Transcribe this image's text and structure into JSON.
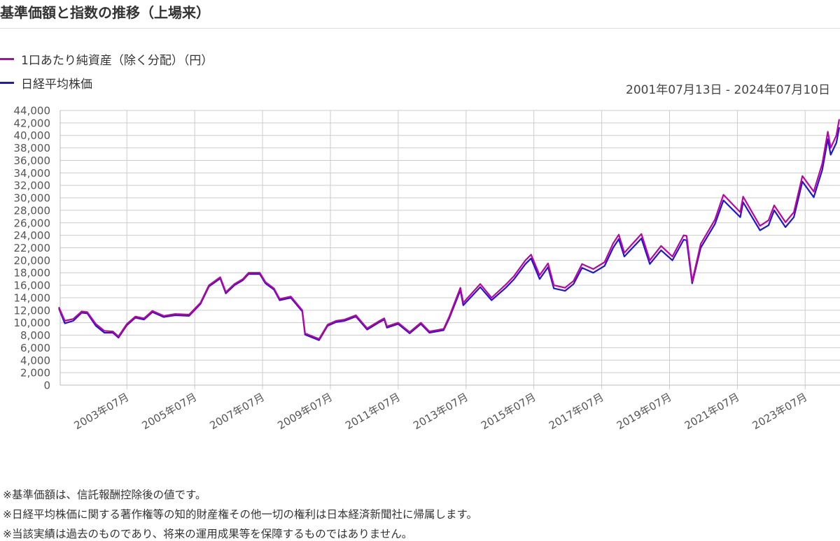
{
  "page": {
    "title": "基準価額と指数の推移（上場来）",
    "date_range": "2001年07月13日 - 2024年07月10日",
    "notes": [
      "※基準価額は、信託報酬控除後の値です。",
      "※日経平均株価に関する著作権等の知的財産権その他一切の権利は日本経済新聞社に帰属します。",
      "※当該実績は過去のものであり、将来の運用成果等を保障するものではありません。"
    ]
  },
  "chart_data": {
    "type": "line",
    "title": "基準価額と指数の推移（上場来）",
    "xlabel": "",
    "ylabel": "",
    "x_range": [
      "2001-07-13",
      "2024-07-10"
    ],
    "ylim": [
      0,
      44000
    ],
    "y_ticks": [
      "0",
      "2,000",
      "4,000",
      "6,000",
      "8,000",
      "10,000",
      "12,000",
      "14,000",
      "16,000",
      "18,000",
      "20,000",
      "22,000",
      "24,000",
      "26,000",
      "28,000",
      "30,000",
      "32,000",
      "34,000",
      "36,000",
      "38,000",
      "40,000",
      "42,000",
      "44,000"
    ],
    "x_ticks": [
      {
        "date": "2003-07",
        "label": "2003年07月"
      },
      {
        "date": "2005-07",
        "label": "2005年07月"
      },
      {
        "date": "2007-07",
        "label": "2007年07月"
      },
      {
        "date": "2009-07",
        "label": "2009年07月"
      },
      {
        "date": "2011-07",
        "label": "2011年07月"
      },
      {
        "date": "2013-07",
        "label": "2013年07月"
      },
      {
        "date": "2015-07",
        "label": "2015年07月"
      },
      {
        "date": "2017-07",
        "label": "2017年07月"
      },
      {
        "date": "2019-07",
        "label": "2019年07月"
      },
      {
        "date": "2021-07",
        "label": "2021年07月"
      },
      {
        "date": "2023-07",
        "label": "2023年07月"
      }
    ],
    "grid": true,
    "legend_position": "top-left",
    "series": [
      {
        "name": "1口あたり純資産（除く分配）（円）",
        "color": "#c000a8",
        "points": [
          [
            "2001-07",
            12400
          ],
          [
            "2001-09",
            10300
          ],
          [
            "2001-12",
            10600
          ],
          [
            "2002-03",
            11800
          ],
          [
            "2002-05",
            11700
          ],
          [
            "2002-08",
            9800
          ],
          [
            "2002-11",
            8700
          ],
          [
            "2003-02",
            8600
          ],
          [
            "2003-04",
            7800
          ],
          [
            "2003-07",
            9800
          ],
          [
            "2003-10",
            11000
          ],
          [
            "2004-01",
            10700
          ],
          [
            "2004-04",
            11900
          ],
          [
            "2004-08",
            11100
          ],
          [
            "2004-12",
            11400
          ],
          [
            "2005-05",
            11300
          ],
          [
            "2005-09",
            13200
          ],
          [
            "2005-12",
            16000
          ],
          [
            "2006-04",
            17300
          ],
          [
            "2006-06",
            14900
          ],
          [
            "2006-09",
            16200
          ],
          [
            "2006-12",
            17000
          ],
          [
            "2007-02",
            18000
          ],
          [
            "2007-06",
            18000
          ],
          [
            "2007-08",
            16500
          ],
          [
            "2007-11",
            15500
          ],
          [
            "2008-01",
            13800
          ],
          [
            "2008-05",
            14200
          ],
          [
            "2008-09",
            12000
          ],
          [
            "2008-10",
            8300
          ],
          [
            "2009-03",
            7400
          ],
          [
            "2009-06",
            9700
          ],
          [
            "2009-09",
            10300
          ],
          [
            "2009-12",
            10500
          ],
          [
            "2010-04",
            11200
          ],
          [
            "2010-08",
            9100
          ],
          [
            "2010-12",
            10200
          ],
          [
            "2011-02",
            10700
          ],
          [
            "2011-03",
            9400
          ],
          [
            "2011-07",
            10000
          ],
          [
            "2011-11",
            8500
          ],
          [
            "2012-03",
            10000
          ],
          [
            "2012-06",
            8600
          ],
          [
            "2012-11",
            9000
          ],
          [
            "2013-01",
            11000
          ],
          [
            "2013-05",
            15600
          ],
          [
            "2013-06",
            13200
          ],
          [
            "2013-12",
            16200
          ],
          [
            "2014-04",
            14000
          ],
          [
            "2014-09",
            16100
          ],
          [
            "2014-12",
            17500
          ],
          [
            "2015-04",
            20000
          ],
          [
            "2015-06",
            20900
          ],
          [
            "2015-09",
            17600
          ],
          [
            "2015-12",
            19500
          ],
          [
            "2016-02",
            16000
          ],
          [
            "2016-06",
            15600
          ],
          [
            "2016-09",
            16700
          ],
          [
            "2016-12",
            19400
          ],
          [
            "2017-04",
            18600
          ],
          [
            "2017-08",
            19700
          ],
          [
            "2017-11",
            22700
          ],
          [
            "2018-01",
            24100
          ],
          [
            "2018-03",
            21200
          ],
          [
            "2018-09",
            24200
          ],
          [
            "2018-12",
            20000
          ],
          [
            "2019-04",
            22300
          ],
          [
            "2019-08",
            20600
          ],
          [
            "2019-12",
            24000
          ],
          [
            "2020-01",
            23900
          ],
          [
            "2020-03",
            16600
          ],
          [
            "2020-06",
            22600
          ],
          [
            "2020-11",
            26500
          ],
          [
            "2021-02",
            30500
          ],
          [
            "2021-08",
            27700
          ],
          [
            "2021-09",
            30200
          ],
          [
            "2022-03",
            25500
          ],
          [
            "2022-06",
            26400
          ],
          [
            "2022-08",
            28800
          ],
          [
            "2022-12",
            26100
          ],
          [
            "2023-03",
            27700
          ],
          [
            "2023-06",
            33500
          ],
          [
            "2023-10",
            31000
          ],
          [
            "2024-01",
            35500
          ],
          [
            "2024-03",
            40600
          ],
          [
            "2024-04",
            38000
          ],
          [
            "2024-06",
            40000
          ],
          [
            "2024-07",
            42500
          ]
        ]
      },
      {
        "name": "日経平均株価",
        "color": "#1a1acc",
        "points": [
          [
            "2001-07",
            12200
          ],
          [
            "2001-09",
            9900
          ],
          [
            "2001-12",
            10300
          ],
          [
            "2002-03",
            11600
          ],
          [
            "2002-05",
            11500
          ],
          [
            "2002-08",
            9500
          ],
          [
            "2002-11",
            8400
          ],
          [
            "2003-02",
            8400
          ],
          [
            "2003-04",
            7600
          ],
          [
            "2003-07",
            9600
          ],
          [
            "2003-10",
            10800
          ],
          [
            "2004-01",
            10500
          ],
          [
            "2004-04",
            11700
          ],
          [
            "2004-08",
            10900
          ],
          [
            "2004-12",
            11200
          ],
          [
            "2005-05",
            11100
          ],
          [
            "2005-09",
            13000
          ],
          [
            "2005-12",
            15800
          ],
          [
            "2006-04",
            17100
          ],
          [
            "2006-06",
            14700
          ],
          [
            "2006-09",
            16000
          ],
          [
            "2006-12",
            16800
          ],
          [
            "2007-02",
            17800
          ],
          [
            "2007-06",
            17800
          ],
          [
            "2007-08",
            16300
          ],
          [
            "2007-11",
            15300
          ],
          [
            "2008-01",
            13600
          ],
          [
            "2008-05",
            14000
          ],
          [
            "2008-09",
            11800
          ],
          [
            "2008-10",
            8100
          ],
          [
            "2009-03",
            7200
          ],
          [
            "2009-06",
            9500
          ],
          [
            "2009-09",
            10100
          ],
          [
            "2009-12",
            10300
          ],
          [
            "2010-04",
            11000
          ],
          [
            "2010-08",
            8900
          ],
          [
            "2010-12",
            10000
          ],
          [
            "2011-02",
            10500
          ],
          [
            "2011-03",
            9200
          ],
          [
            "2011-07",
            9800
          ],
          [
            "2011-11",
            8300
          ],
          [
            "2012-03",
            9800
          ],
          [
            "2012-06",
            8400
          ],
          [
            "2012-11",
            8800
          ],
          [
            "2013-01",
            10700
          ],
          [
            "2013-05",
            15200
          ],
          [
            "2013-06",
            12800
          ],
          [
            "2013-12",
            15700
          ],
          [
            "2014-04",
            13600
          ],
          [
            "2014-09",
            15600
          ],
          [
            "2014-12",
            17000
          ],
          [
            "2015-04",
            19400
          ],
          [
            "2015-06",
            20300
          ],
          [
            "2015-09",
            17000
          ],
          [
            "2015-12",
            18900
          ],
          [
            "2016-02",
            15500
          ],
          [
            "2016-06",
            15100
          ],
          [
            "2016-09",
            16200
          ],
          [
            "2016-12",
            18800
          ],
          [
            "2017-04",
            18000
          ],
          [
            "2017-08",
            19100
          ],
          [
            "2017-11",
            22000
          ],
          [
            "2018-01",
            23400
          ],
          [
            "2018-03",
            20600
          ],
          [
            "2018-09",
            23500
          ],
          [
            "2018-12",
            19400
          ],
          [
            "2019-04",
            21600
          ],
          [
            "2019-08",
            20000
          ],
          [
            "2019-12",
            23300
          ],
          [
            "2020-01",
            23200
          ],
          [
            "2020-03",
            16300
          ],
          [
            "2020-06",
            22000
          ],
          [
            "2020-11",
            25800
          ],
          [
            "2021-02",
            29600
          ],
          [
            "2021-08",
            26900
          ],
          [
            "2021-09",
            29300
          ],
          [
            "2022-03",
            24800
          ],
          [
            "2022-06",
            25600
          ],
          [
            "2022-08",
            28000
          ],
          [
            "2022-12",
            25300
          ],
          [
            "2023-03",
            26900
          ],
          [
            "2023-06",
            32600
          ],
          [
            "2023-10",
            30100
          ],
          [
            "2024-01",
            34500
          ],
          [
            "2024-03",
            39400
          ],
          [
            "2024-04",
            36900
          ],
          [
            "2024-06",
            38800
          ],
          [
            "2024-07",
            41200
          ]
        ]
      }
    ]
  }
}
